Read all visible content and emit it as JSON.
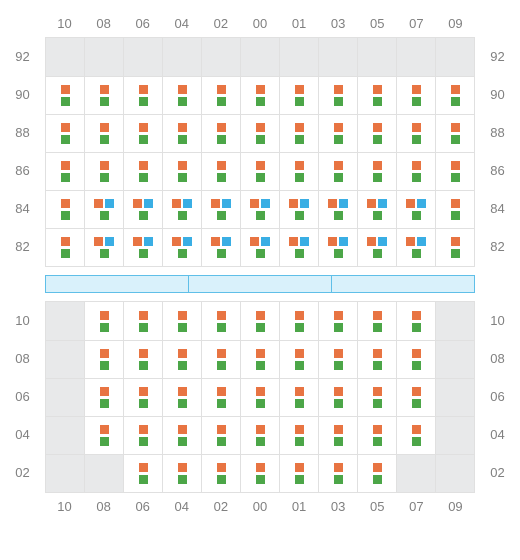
{
  "colors": {
    "orange": "#e87442",
    "green": "#4ca648",
    "blue": "#39aee4",
    "empty_bg": "#e8e9ea",
    "grid_border": "#e0e0e0",
    "label_text": "#808080",
    "divider_bg": "#d9f1fb",
    "divider_border": "#5fbfe8"
  },
  "columns": [
    "10",
    "08",
    "06",
    "04",
    "02",
    "00",
    "01",
    "03",
    "05",
    "07",
    "09"
  ],
  "top": {
    "rows": [
      "92",
      "90",
      "88",
      "86",
      "84",
      "82"
    ],
    "cells": [
      [
        {
          "t": "e"
        },
        {
          "t": "e"
        },
        {
          "t": "e"
        },
        {
          "t": "e"
        },
        {
          "t": "e"
        },
        {
          "t": "e"
        },
        {
          "t": "e"
        },
        {
          "t": "e"
        },
        {
          "t": "e"
        },
        {
          "t": "e"
        },
        {
          "t": "e"
        }
      ],
      [
        {
          "t": "og"
        },
        {
          "t": "og"
        },
        {
          "t": "og"
        },
        {
          "t": "og"
        },
        {
          "t": "og"
        },
        {
          "t": "og"
        },
        {
          "t": "og"
        },
        {
          "t": "og"
        },
        {
          "t": "og"
        },
        {
          "t": "og"
        },
        {
          "t": "og"
        }
      ],
      [
        {
          "t": "og"
        },
        {
          "t": "og"
        },
        {
          "t": "og"
        },
        {
          "t": "og"
        },
        {
          "t": "og"
        },
        {
          "t": "og"
        },
        {
          "t": "og"
        },
        {
          "t": "og"
        },
        {
          "t": "og"
        },
        {
          "t": "og"
        },
        {
          "t": "og"
        }
      ],
      [
        {
          "t": "og"
        },
        {
          "t": "og"
        },
        {
          "t": "og"
        },
        {
          "t": "og"
        },
        {
          "t": "og"
        },
        {
          "t": "og"
        },
        {
          "t": "og"
        },
        {
          "t": "og"
        },
        {
          "t": "og"
        },
        {
          "t": "og"
        },
        {
          "t": "og"
        }
      ],
      [
        {
          "t": "og"
        },
        {
          "t": "ogb"
        },
        {
          "t": "ogb"
        },
        {
          "t": "ogb"
        },
        {
          "t": "ogb"
        },
        {
          "t": "ogb"
        },
        {
          "t": "ogb"
        },
        {
          "t": "ogb"
        },
        {
          "t": "ogb"
        },
        {
          "t": "ogb"
        },
        {
          "t": "og"
        }
      ],
      [
        {
          "t": "og"
        },
        {
          "t": "ogb"
        },
        {
          "t": "ogb"
        },
        {
          "t": "ogb"
        },
        {
          "t": "ogb"
        },
        {
          "t": "ogb"
        },
        {
          "t": "ogb"
        },
        {
          "t": "ogb"
        },
        {
          "t": "ogb"
        },
        {
          "t": "ogb"
        },
        {
          "t": "og"
        }
      ]
    ]
  },
  "divider_segments": 3,
  "bottom": {
    "rows": [
      "10",
      "08",
      "06",
      "04",
      "02"
    ],
    "cells": [
      [
        {
          "t": "e"
        },
        {
          "t": "og"
        },
        {
          "t": "og"
        },
        {
          "t": "og"
        },
        {
          "t": "og"
        },
        {
          "t": "og"
        },
        {
          "t": "og"
        },
        {
          "t": "og"
        },
        {
          "t": "og"
        },
        {
          "t": "og"
        },
        {
          "t": "e"
        }
      ],
      [
        {
          "t": "e"
        },
        {
          "t": "og"
        },
        {
          "t": "og"
        },
        {
          "t": "og"
        },
        {
          "t": "og"
        },
        {
          "t": "og"
        },
        {
          "t": "og"
        },
        {
          "t": "og"
        },
        {
          "t": "og"
        },
        {
          "t": "og"
        },
        {
          "t": "e"
        }
      ],
      [
        {
          "t": "e"
        },
        {
          "t": "og"
        },
        {
          "t": "og"
        },
        {
          "t": "og"
        },
        {
          "t": "og"
        },
        {
          "t": "og"
        },
        {
          "t": "og"
        },
        {
          "t": "og"
        },
        {
          "t": "og"
        },
        {
          "t": "og"
        },
        {
          "t": "e"
        }
      ],
      [
        {
          "t": "e"
        },
        {
          "t": "og"
        },
        {
          "t": "og"
        },
        {
          "t": "og"
        },
        {
          "t": "og"
        },
        {
          "t": "og"
        },
        {
          "t": "og"
        },
        {
          "t": "og"
        },
        {
          "t": "og"
        },
        {
          "t": "og"
        },
        {
          "t": "e"
        }
      ],
      [
        {
          "t": "e"
        },
        {
          "t": "e"
        },
        {
          "t": "og"
        },
        {
          "t": "og"
        },
        {
          "t": "og"
        },
        {
          "t": "og"
        },
        {
          "t": "og"
        },
        {
          "t": "og"
        },
        {
          "t": "og"
        },
        {
          "t": "e"
        },
        {
          "t": "e"
        }
      ]
    ]
  }
}
